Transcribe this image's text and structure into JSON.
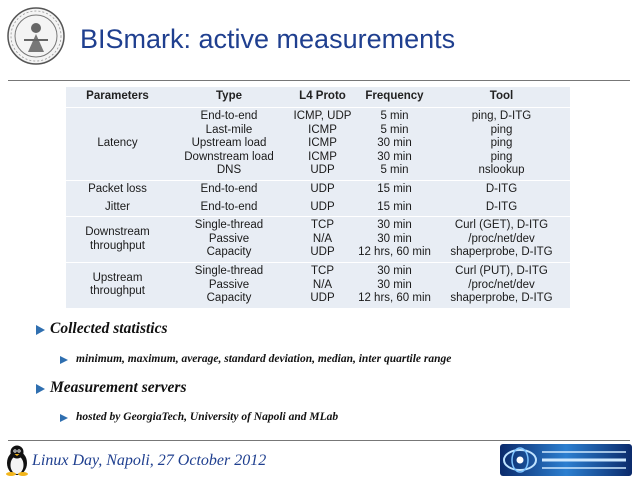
{
  "slide": {
    "title": "BISmark: active measurements",
    "footer": "Linux Day, Napoli, 27 October 2012"
  },
  "table": {
    "headers": [
      "Parameters",
      "Type",
      "L4 Proto",
      "Frequency",
      "Tool"
    ],
    "groups": [
      {
        "parameter": [
          "Latency"
        ],
        "types": [
          "End-to-end",
          "Last-mile",
          "Upstream load",
          "Downstream load",
          "DNS"
        ],
        "protos": [
          "ICMP, UDP",
          "ICMP",
          "ICMP",
          "ICMP",
          "UDP"
        ],
        "freqs": [
          "5 min",
          "5 min",
          "30 min",
          "30 min",
          "5 min"
        ],
        "tools": [
          "ping, D-ITG",
          "ping",
          "ping",
          "ping",
          "nslookup"
        ]
      },
      {
        "parameter": [
          "Packet loss"
        ],
        "types": [
          "End-to-end"
        ],
        "protos": [
          "UDP"
        ],
        "freqs": [
          "15 min"
        ],
        "tools": [
          "D-ITG"
        ]
      },
      {
        "parameter": [
          "Jitter"
        ],
        "types": [
          "End-to-end"
        ],
        "protos": [
          "UDP"
        ],
        "freqs": [
          "15 min"
        ],
        "tools": [
          "D-ITG"
        ]
      },
      {
        "parameter": [
          "Downstream",
          "throughput"
        ],
        "types": [
          "Single-thread",
          "Passive",
          "Capacity"
        ],
        "protos": [
          "TCP",
          "N/A",
          "UDP"
        ],
        "freqs": [
          "30 min",
          "30 min",
          "12 hrs, 60 min"
        ],
        "tools": [
          "Curl (GET), D-ITG",
          "/proc/net/dev",
          "shaperprobe, D-ITG"
        ]
      },
      {
        "parameter": [
          "Upstream",
          "throughput"
        ],
        "types": [
          "Single-thread",
          "Passive",
          "Capacity"
        ],
        "protos": [
          "TCP",
          "N/A",
          "UDP"
        ],
        "freqs": [
          "30 min",
          "30 min",
          "12 hrs, 60 min"
        ],
        "tools": [
          "Curl (PUT), D-ITG",
          "/proc/net/dev",
          "shaperprobe, D-ITG"
        ]
      }
    ]
  },
  "bullets": {
    "collected": "Collected statistics",
    "collected_detail": "minimum, maximum, average, standard deviation, median, inter quartile range",
    "servers": "Measurement servers",
    "servers_detail": "hosted by GeorgiaTech, University of Napoli and MLab"
  },
  "colors": {
    "title": "#1f3f8f",
    "table_bg": "#e8edf4",
    "bullet_arrow": "#2f6fb0"
  },
  "icons": {
    "seal": "university-seal-icon",
    "tux": "tux-penguin-icon",
    "logo": "comics-logo-icon"
  }
}
